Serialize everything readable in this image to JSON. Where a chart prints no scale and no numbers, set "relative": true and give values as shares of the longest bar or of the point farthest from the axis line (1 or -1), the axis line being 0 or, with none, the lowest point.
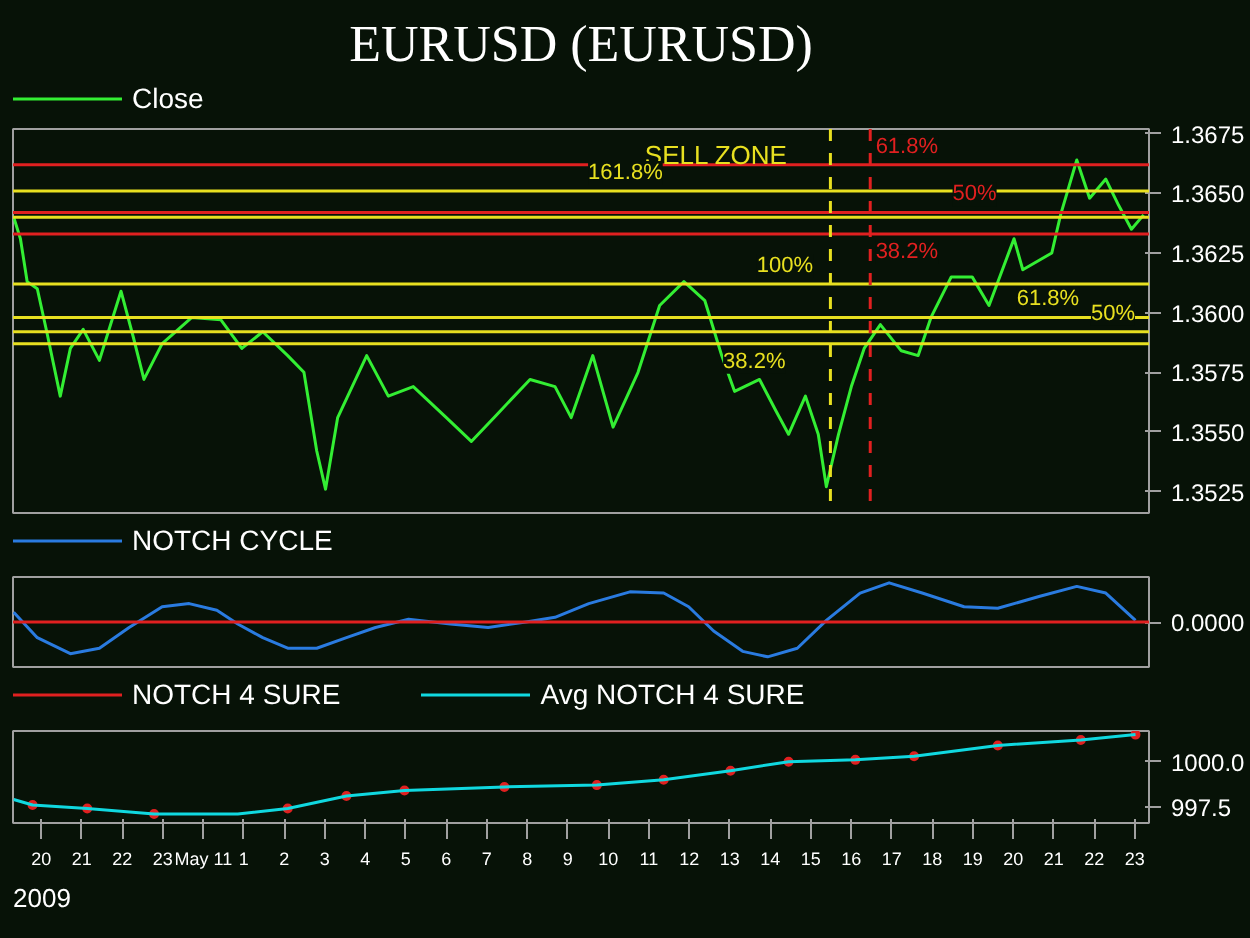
{
  "chart_data": [
    {
      "type": "line",
      "title": "EURUSD (EURUSD)",
      "legend": "top left",
      "tick_labels": "y",
      "grid": false,
      "xlim": [
        "2009-05-10T19:18",
        "2009-05-11T23:21"
      ],
      "ylim": [
        1.3516,
        1.3677
      ],
      "yticks": [
        1.3525,
        {
          "value": 1.355,
          "label": "1.3550"
        },
        1.3575,
        {
          "value": 1.36,
          "label": "1.3600"
        },
        1.3625,
        {
          "value": 1.365,
          "label": "1.3650"
        },
        1.3675
      ],
      "series": [
        {
          "name": "Close",
          "color": "#33ee33",
          "x": [
            "2009-05-10T19:19",
            "2009-05-10T19:29",
            "2009-05-10T19:39",
            "2009-05-10T19:54",
            "2009-05-10T20:08",
            "2009-05-10T20:28",
            "2009-05-10T20:43",
            "2009-05-10T21:02",
            "2009-05-10T21:26",
            "2009-05-10T21:58",
            "2009-05-10T22:16",
            "2009-05-10T22:32",
            "2009-05-10T22:59",
            "2009-05-10T23:43",
            "2009-05-11T00:26",
            "2009-05-11T00:57",
            "2009-05-11T01:28",
            "2009-05-11T02:05",
            "2009-05-11T02:29",
            "2009-05-11T02:48",
            "2009-05-11T03:01",
            "2009-05-11T03:19",
            "2009-05-11T04:02",
            "2009-05-11T04:34",
            "2009-05-11T05:11",
            "2009-05-11T06:00",
            "2009-05-11T06:37",
            "2009-05-11T07:14",
            "2009-05-11T08:04",
            "2009-05-11T08:41",
            "2009-05-11T09:05",
            "2009-05-11T09:37",
            "2009-05-11T10:07",
            "2009-05-11T10:44",
            "2009-05-11T11:16",
            "2009-05-11T11:52",
            "2009-05-11T12:23",
            "2009-05-11T12:48",
            "2009-05-11T13:07",
            "2009-05-11T13:44",
            "2009-05-11T14:08",
            "2009-05-11T14:27",
            "2009-05-11T14:52",
            "2009-05-11T15:11",
            "2009-05-11T15:23",
            "2009-05-11T15:41",
            "2009-05-11T16:00",
            "2009-05-11T16:19",
            "2009-05-11T16:43",
            "2009-05-11T17:14",
            "2009-05-11T17:39",
            "2009-05-11T17:58",
            "2009-05-11T18:28",
            "2009-05-11T18:59",
            "2009-05-11T19:24",
            "2009-05-11T20:01",
            "2009-05-11T20:14",
            "2009-05-11T20:57",
            "2009-05-11T21:10",
            "2009-05-11T21:34",
            "2009-05-11T21:53",
            "2009-05-11T22:17",
            "2009-05-11T22:36",
            "2009-05-11T22:55",
            "2009-05-11T23:13"
          ],
          "values": [
            1.364,
            1.3631,
            1.3613,
            1.361,
            1.3592,
            1.3565,
            1.3585,
            1.3593,
            1.358,
            1.3609,
            1.359,
            1.3572,
            1.3587,
            1.3598,
            1.3597,
            1.3585,
            1.3592,
            1.3582,
            1.3575,
            1.3542,
            1.3526,
            1.3556,
            1.3582,
            1.3565,
            1.3569,
            1.3556,
            1.3546,
            1.3557,
            1.3572,
            1.3569,
            1.3556,
            1.3582,
            1.3552,
            1.3575,
            1.3603,
            1.3613,
            1.3605,
            1.3582,
            1.3567,
            1.3572,
            1.3559,
            1.3549,
            1.3565,
            1.3549,
            1.3527,
            1.3549,
            1.3569,
            1.3585,
            1.3595,
            1.3584,
            1.3582,
            1.3598,
            1.3615,
            1.3615,
            1.3603,
            1.3631,
            1.3618,
            1.3625,
            1.3641,
            1.3664,
            1.3648,
            1.3656,
            1.3645,
            1.3635,
            1.3641
          ]
        }
      ],
      "ref_lines": [
        {
          "axis": "y",
          "value": 1.3651,
          "color": "#e8e020"
        },
        {
          "axis": "y",
          "value": 1.364,
          "color": "#e8e020"
        },
        {
          "axis": "y",
          "value": 1.3612,
          "color": "#e8e020"
        },
        {
          "axis": "y",
          "value": 1.3598,
          "color": "#e8e020"
        },
        {
          "axis": "y",
          "value": 1.3592,
          "color": "#e8e020"
        },
        {
          "axis": "y",
          "value": 1.3587,
          "color": "#e8e020"
        },
        {
          "axis": "y",
          "value": 1.3662,
          "color": "#e02020"
        },
        {
          "axis": "y",
          "value": 1.3642,
          "color": "#e02020"
        },
        {
          "axis": "y",
          "value": 1.3633,
          "color": "#e02020"
        },
        {
          "axis": "x",
          "value": "2009-05-11T15:29",
          "color": "#e8e020",
          "line_style": "dashed"
        },
        {
          "axis": "x",
          "value": "2009-05-11T16:28",
          "color": "#e02020",
          "line_style": "dashed"
        }
      ],
      "annotations": [
        {
          "text": "SELL ZONE",
          "x": "2009-05-11T12:40",
          "y": 1.3666
        },
        {
          "text": "161.8%",
          "x": "2009-05-11T09:30",
          "y": 1.3651
        },
        {
          "text": "100%",
          "x": "2009-05-11T13:40",
          "y": 1.3612
        },
        {
          "text": "61.8%",
          "x": "2009-05-11T20:05",
          "y": 1.3598
        },
        {
          "text": "50%",
          "x": "2009-05-11T21:55",
          "y": 1.3592
        },
        {
          "text": "38.2%",
          "x": "2009-05-11T12:50",
          "y": 1.3587
        },
        {
          "text": "61.8%",
          "x": "2009-05-11T16:36",
          "y": 1.3662
        },
        {
          "text": "50%",
          "x": "2009-05-11T18:30",
          "y": 1.3642
        },
        {
          "text": "38.2%",
          "x": "2009-05-11T16:36",
          "y": 1.3633
        }
      ]
    },
    {
      "type": "line",
      "relative": true,
      "legend": "top left",
      "tick_labels": false,
      "grid": false,
      "xlim": [
        "2009-05-10T19:18",
        "2009-05-11T23:21"
      ],
      "series": [
        {
          "name": "NOTCH CYCLE",
          "color": "#2a7be0",
          "x": [
            "2009-05-10T19:19",
            "2009-05-10T19:54",
            "2009-05-10T20:43",
            "2009-05-10T21:26",
            "2009-05-10T22:10",
            "2009-05-10T22:59",
            "2009-05-10T23:39",
            "2009-05-11T00:20",
            "2009-05-11T00:51",
            "2009-05-11T01:28",
            "2009-05-11T02:05",
            "2009-05-11T02:48",
            "2009-05-11T03:32",
            "2009-05-11T04:15",
            "2009-05-11T05:04",
            "2009-05-11T06:06",
            "2009-05-11T07:02",
            "2009-05-11T07:58",
            "2009-05-11T08:41",
            "2009-05-11T09:31",
            "2009-05-11T10:32",
            "2009-05-11T11:22",
            "2009-05-11T11:59",
            "2009-05-11T12:36",
            "2009-05-11T13:19",
            "2009-05-11T13:56",
            "2009-05-11T14:40",
            "2009-05-11T15:23",
            "2009-05-11T16:13",
            "2009-05-11T16:56",
            "2009-05-11T17:45",
            "2009-05-11T18:47",
            "2009-05-11T19:37",
            "2009-05-11T20:38",
            "2009-05-11T21:34",
            "2009-05-11T22:17",
            "2009-05-11T23:01"
          ],
          "values": [
            0.25,
            -0.4,
            -0.81,
            -0.67,
            -0.14,
            0.39,
            0.47,
            0.3,
            -0.05,
            -0.4,
            -0.67,
            -0.67,
            -0.4,
            -0.14,
            0.07,
            -0.05,
            -0.14,
            0,
            0.12,
            0.47,
            0.77,
            0.74,
            0.39,
            -0.23,
            -0.75,
            -0.89,
            -0.67,
            0.04,
            0.74,
            1,
            0.74,
            0.39,
            0.35,
            0.65,
            0.91,
            0.74,
            0.04
          ]
        }
      ],
      "ref_lines": [
        {
          "axis": "y",
          "value": 0,
          "color": "#e02020"
        }
      ],
      "annotations": [
        "0.0000"
      ]
    },
    {
      "type": "line",
      "legend": "top left",
      "grid": false,
      "xlim": [
        "2009-05-10T19:18",
        "2009-05-11T23:21"
      ],
      "ylim": [
        996.6,
        1001.7
      ],
      "yticks": [
        997.5,
        {
          "value": 1000,
          "label": "1000.0"
        }
      ],
      "xticks": [
        {
          "value": "2009-05-10T20:00",
          "label": "20"
        },
        {
          "value": "2009-05-10T21:00",
          "label": "21"
        },
        {
          "value": "2009-05-10T22:00",
          "label": "22"
        },
        {
          "value": "2009-05-10T23:00",
          "label": "23"
        },
        {
          "value": "2009-05-11T00:00",
          "label": "May 11"
        },
        {
          "value": "2009-05-11T01:00",
          "label": "1"
        },
        {
          "value": "2009-05-11T02:00",
          "label": "2"
        },
        {
          "value": "2009-05-11T03:00",
          "label": "3"
        },
        {
          "value": "2009-05-11T04:00",
          "label": "4"
        },
        {
          "value": "2009-05-11T05:00",
          "label": "5"
        },
        {
          "value": "2009-05-11T06:00",
          "label": "6"
        },
        {
          "value": "2009-05-11T07:00",
          "label": "7"
        },
        {
          "value": "2009-05-11T08:00",
          "label": "8"
        },
        {
          "value": "2009-05-11T09:00",
          "label": "9"
        },
        {
          "value": "2009-05-11T10:00",
          "label": "10"
        },
        {
          "value": "2009-05-11T11:00",
          "label": "11"
        },
        {
          "value": "2009-05-11T12:00",
          "label": "12"
        },
        {
          "value": "2009-05-11T13:00",
          "label": "13"
        },
        {
          "value": "2009-05-11T14:00",
          "label": "14"
        },
        {
          "value": "2009-05-11T15:00",
          "label": "15"
        },
        {
          "value": "2009-05-11T16:00",
          "label": "16"
        },
        {
          "value": "2009-05-11T17:00",
          "label": "17"
        },
        {
          "value": "2009-05-11T18:00",
          "label": "18"
        },
        {
          "value": "2009-05-11T19:00",
          "label": "19"
        },
        {
          "value": "2009-05-11T20:00",
          "label": "20"
        },
        {
          "value": "2009-05-11T21:00",
          "label": "21"
        },
        {
          "value": "2009-05-11T22:00",
          "label": "22"
        },
        {
          "value": "2009-05-11T23:00",
          "label": "23"
        }
      ],
      "series": [
        {
          "name": "NOTCH 4 SURE",
          "type": "scatter",
          "marker": "circle",
          "color": "#e02020",
          "x": [
            "2009-05-10T19:47",
            "2009-05-10T21:08",
            "2009-05-10T22:47",
            "2009-05-11T02:05",
            "2009-05-11T03:32",
            "2009-05-11T04:58",
            "2009-05-11T07:26",
            "2009-05-11T09:43",
            "2009-05-11T11:22",
            "2009-05-11T13:01",
            "2009-05-11T14:27",
            "2009-05-11T16:06",
            "2009-05-11T17:33",
            "2009-05-11T19:37",
            "2009-05-11T21:40",
            "2009-05-11T23:01"
          ],
          "values": [
            997.6,
            997.4,
            997.1,
            997.4,
            998.1,
            998.4,
            998.6,
            998.7,
            999.0,
            999.5,
            1000.0,
            1000.1,
            1000.3,
            1000.9,
            1001.2,
            1001.5
          ]
        },
        {
          "name": "Avg NOTCH 4 SURE",
          "color": "#10d8e0",
          "x": [
            "2009-05-10T19:19",
            "2009-05-10T19:47",
            "2009-05-10T21:08",
            "2009-05-10T22:47",
            "2009-05-11T00:51",
            "2009-05-11T02:05",
            "2009-05-11T03:32",
            "2009-05-11T04:58",
            "2009-05-11T07:26",
            "2009-05-11T09:43",
            "2009-05-11T11:22",
            "2009-05-11T13:01",
            "2009-05-11T14:27",
            "2009-05-11T16:06",
            "2009-05-11T17:33",
            "2009-05-11T19:37",
            "2009-05-11T21:40",
            "2009-05-11T23:01"
          ],
          "values": [
            997.9,
            997.6,
            997.4,
            997.1,
            997.1,
            997.4,
            998.1,
            998.4,
            998.6,
            998.7,
            999.0,
            999.5,
            1000.0,
            1000.1,
            1000.3,
            1000.9,
            1001.2,
            1001.5
          ]
        }
      ],
      "annotations": [
        "2009"
      ]
    }
  ]
}
